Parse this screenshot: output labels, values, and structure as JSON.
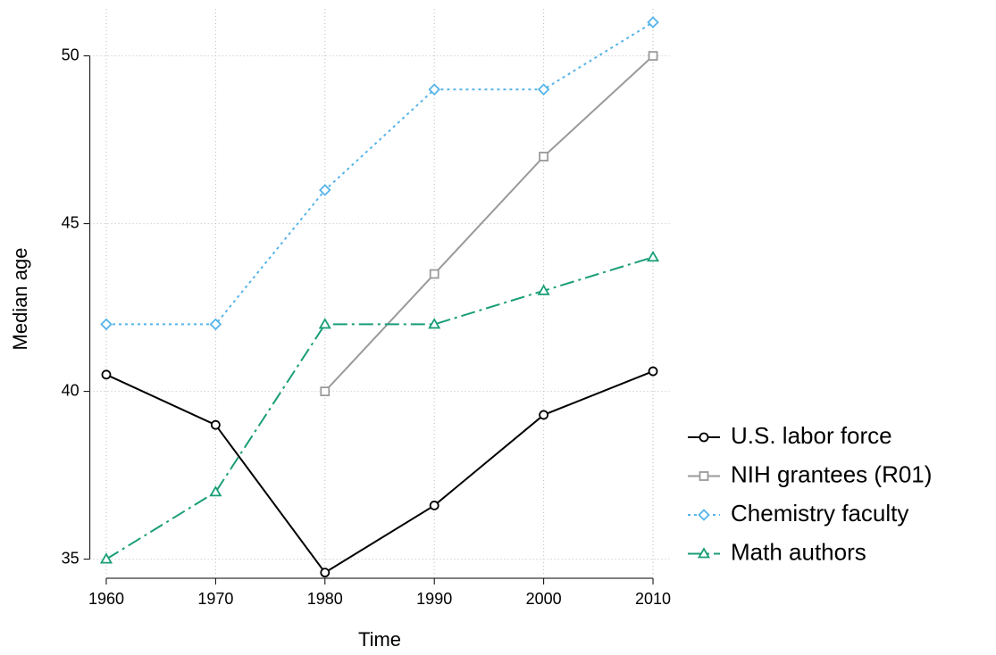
{
  "chart_data": {
    "type": "line",
    "x": [
      1960,
      1970,
      1980,
      1990,
      2000,
      2010
    ],
    "xlabel": "Time",
    "ylabel": "Median age",
    "xlim": [
      1958.5,
      2011.5
    ],
    "xticks": [
      1960,
      1970,
      1980,
      1990,
      2000,
      2010
    ],
    "ylim": [
      34.5,
      51.4
    ],
    "yticks": [
      35,
      40,
      45,
      50
    ],
    "grid": true,
    "legend": "right",
    "series": [
      {
        "name": "U.S. labor force",
        "color": "#000000",
        "marker": "circle",
        "dash": "solid",
        "values": [
          40.5,
          39.0,
          34.6,
          36.6,
          39.3,
          40.6
        ]
      },
      {
        "name": "NIH grantees (R01)",
        "color": "#9a9a9a",
        "marker": "square",
        "dash": "solid",
        "values": [
          null,
          null,
          40,
          43.5,
          47,
          50
        ]
      },
      {
        "name": "Chemistry faculty",
        "color": "#56b4e9",
        "marker": "diamond",
        "dash": "dot",
        "values": [
          42,
          42,
          46,
          49,
          49,
          51
        ]
      },
      {
        "name": "Math authors",
        "color": "#1a9e77",
        "marker": "triangle",
        "dash": "dashdot",
        "values": [
          35,
          37,
          42,
          42,
          43,
          44
        ]
      }
    ]
  }
}
